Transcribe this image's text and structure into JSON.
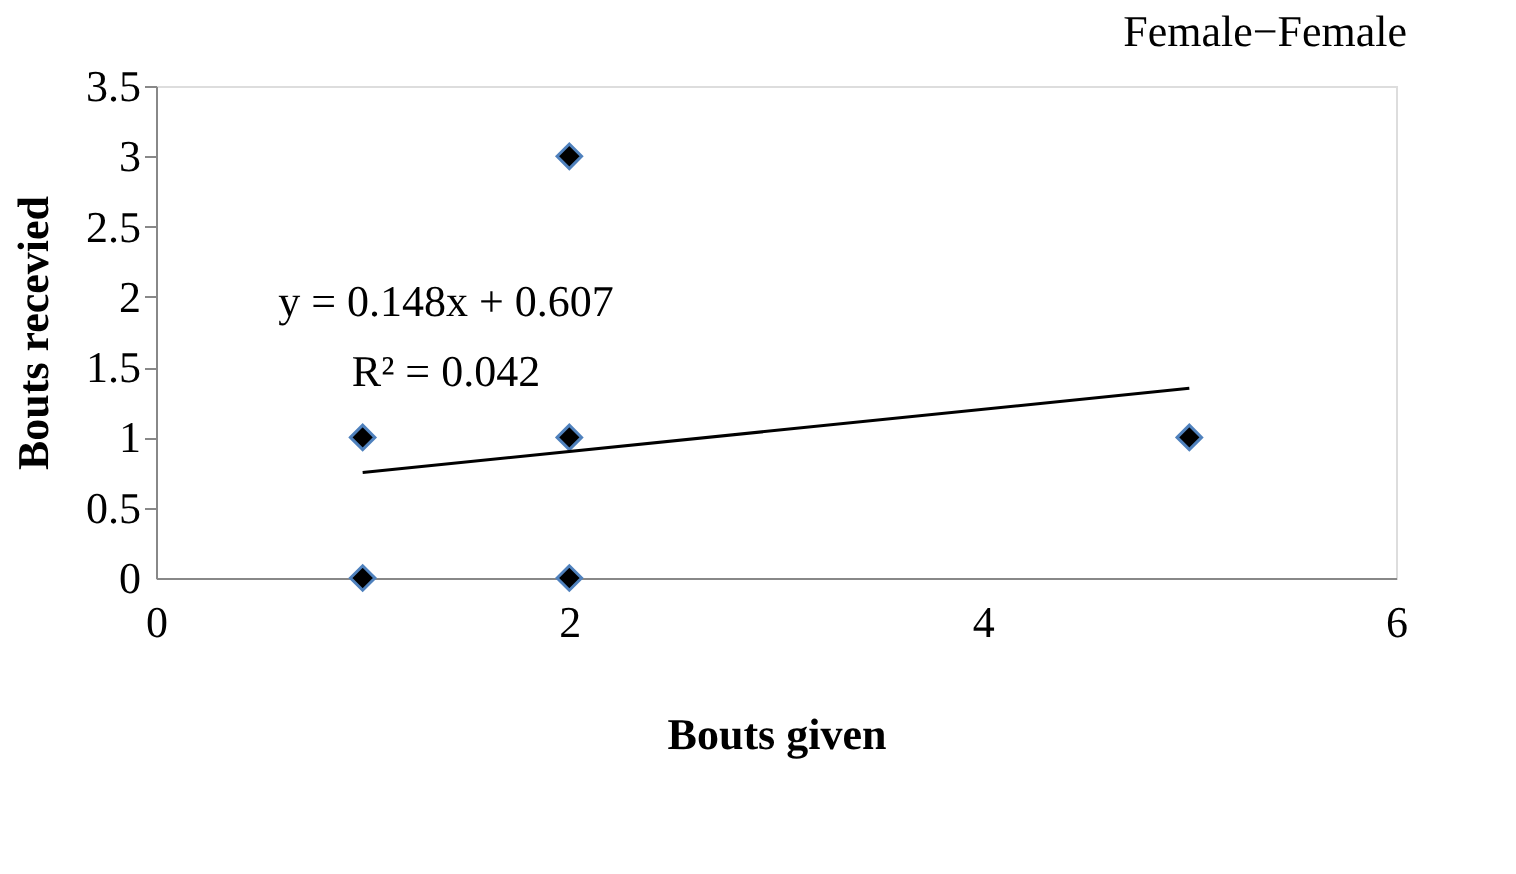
{
  "chart_data": {
    "type": "scatter",
    "title": "Female−Female",
    "xlabel": "Bouts given",
    "ylabel": "Bouts recevied",
    "series": [
      {
        "color": "#000000",
        "marker": "diamond",
        "x": [
          1,
          1,
          2,
          2,
          2,
          5
        ],
        "values": [
          1,
          0,
          3,
          1,
          0,
          1
        ]
      },
      {
        "type": "line",
        "color": "#000000",
        "marker": "none",
        "x": [
          1,
          5
        ],
        "values": [
          0.75,
          1.35
        ]
      }
    ],
    "annotations": [
      "y = 0.148x + 0.607",
      "R² = 0.042"
    ],
    "xlim": [
      0,
      6
    ],
    "xticks": [
      0,
      2,
      4,
      6
    ],
    "ylim": [
      0,
      3.5
    ],
    "yticks": [
      0,
      0.5,
      1,
      1.5,
      2,
      2.5,
      3,
      3.5
    ],
    "grid": false,
    "line_style": "solid"
  }
}
